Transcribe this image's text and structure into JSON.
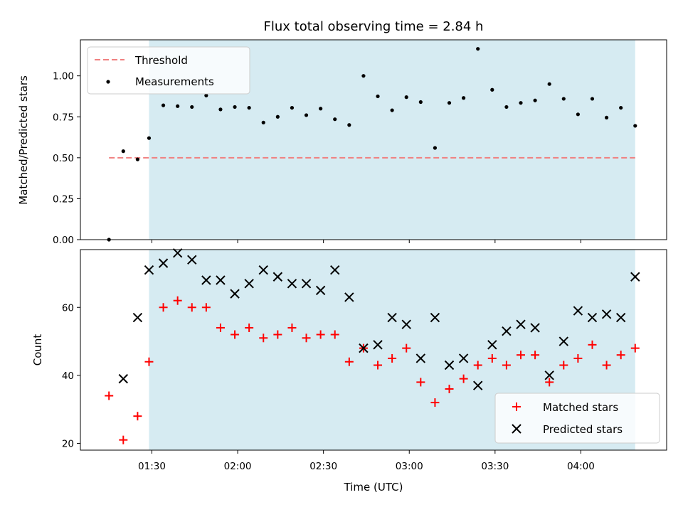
{
  "chart_data": [
    {
      "type": "scatter",
      "title": "Flux total observing time = 2.84 h",
      "xlabel": "",
      "ylabel": "Matched/Predicted stars",
      "ylim": [
        0.0,
        1.22
      ],
      "y_ticks": [
        "0.00",
        "0.25",
        "0.50",
        "0.75",
        "1.00"
      ],
      "x_ticks": [
        "01:30",
        "02:00",
        "02:30",
        "03:00",
        "03:30",
        "04:00"
      ],
      "x_tick_labels_shown": false,
      "observing_window": {
        "start": "01:29",
        "end": "04:19"
      },
      "threshold": {
        "name": "Threshold",
        "value": 0.5,
        "from": "01:15",
        "to": "04:19",
        "color": "#f08080",
        "style": "dashed"
      },
      "series": [
        {
          "name": "Measurements",
          "color": "#000000",
          "marker": "dot",
          "x": [
            "01:15",
            "01:20",
            "01:25",
            "01:29",
            "01:34",
            "01:39",
            "01:44",
            "01:49",
            "01:54",
            "01:59",
            "02:04",
            "02:09",
            "02:14",
            "02:19",
            "02:24",
            "02:29",
            "02:34",
            "02:39",
            "02:44",
            "02:49",
            "02:54",
            "02:59",
            "03:04",
            "03:09",
            "03:14",
            "03:19",
            "03:24",
            "03:29",
            "03:34",
            "03:39",
            "03:44",
            "03:49",
            "03:54",
            "03:59",
            "04:04",
            "04:09",
            "04:14",
            "04:19"
          ],
          "values": [
            0.0,
            0.54,
            0.49,
            0.62,
            0.82,
            0.815,
            0.81,
            0.88,
            0.795,
            0.81,
            0.805,
            0.715,
            0.75,
            0.805,
            0.76,
            0.8,
            0.735,
            0.7,
            1.0,
            0.875,
            0.79,
            0.87,
            0.84,
            0.56,
            0.835,
            0.865,
            1.165,
            0.915,
            0.81,
            0.835,
            0.85,
            0.95,
            0.86,
            0.765,
            0.86,
            0.745,
            0.805,
            0.695
          ]
        }
      ],
      "legend": {
        "position": "top-left",
        "entries": [
          "Threshold",
          "Measurements"
        ]
      }
    },
    {
      "type": "scatter",
      "title": "",
      "xlabel": "Time (UTC)",
      "ylabel": "Count",
      "ylim": [
        18,
        77
      ],
      "y_ticks": [
        "20",
        "40",
        "60"
      ],
      "x_ticks": [
        "01:30",
        "02:00",
        "02:30",
        "03:00",
        "03:30",
        "04:00"
      ],
      "observing_window": {
        "start": "01:29",
        "end": "04:19"
      },
      "x": [
        "01:15",
        "01:20",
        "01:25",
        "01:29",
        "01:34",
        "01:39",
        "01:44",
        "01:49",
        "01:54",
        "01:59",
        "02:04",
        "02:09",
        "02:14",
        "02:19",
        "02:24",
        "02:29",
        "02:34",
        "02:39",
        "02:44",
        "02:49",
        "02:54",
        "02:59",
        "03:04",
        "03:09",
        "03:14",
        "03:19",
        "03:24",
        "03:29",
        "03:34",
        "03:39",
        "03:44",
        "03:49",
        "03:54",
        "03:59",
        "04:04",
        "04:09",
        "04:14",
        "04:19"
      ],
      "series": [
        {
          "name": "Matched stars",
          "color": "#ff0000",
          "marker": "plus",
          "values": [
            34,
            21,
            28,
            44,
            60,
            62,
            60,
            60,
            54,
            52,
            54,
            51,
            52,
            54,
            51,
            52,
            52,
            44,
            48,
            43,
            45,
            48,
            38,
            32,
            36,
            39,
            43,
            45,
            43,
            46,
            46,
            38,
            43,
            45,
            49,
            43,
            46,
            48
          ]
        },
        {
          "name": "Predicted stars",
          "color": "#000000",
          "marker": "x",
          "values": [
            null,
            39,
            57,
            71,
            73,
            76,
            74,
            68,
            68,
            64,
            67,
            71,
            69,
            67,
            67,
            65,
            71,
            63,
            48,
            49,
            57,
            55,
            45,
            57,
            43,
            45,
            37,
            49,
            53,
            55,
            54,
            40,
            50,
            59,
            57,
            58,
            57,
            69
          ]
        }
      ],
      "legend": {
        "position": "bottom-right",
        "entries": [
          "Matched stars",
          "Predicted stars"
        ]
      }
    }
  ],
  "colors": {
    "shade": "#add8e6",
    "threshold": "#f08080",
    "matched": "#ff0000",
    "predicted": "#000000"
  }
}
